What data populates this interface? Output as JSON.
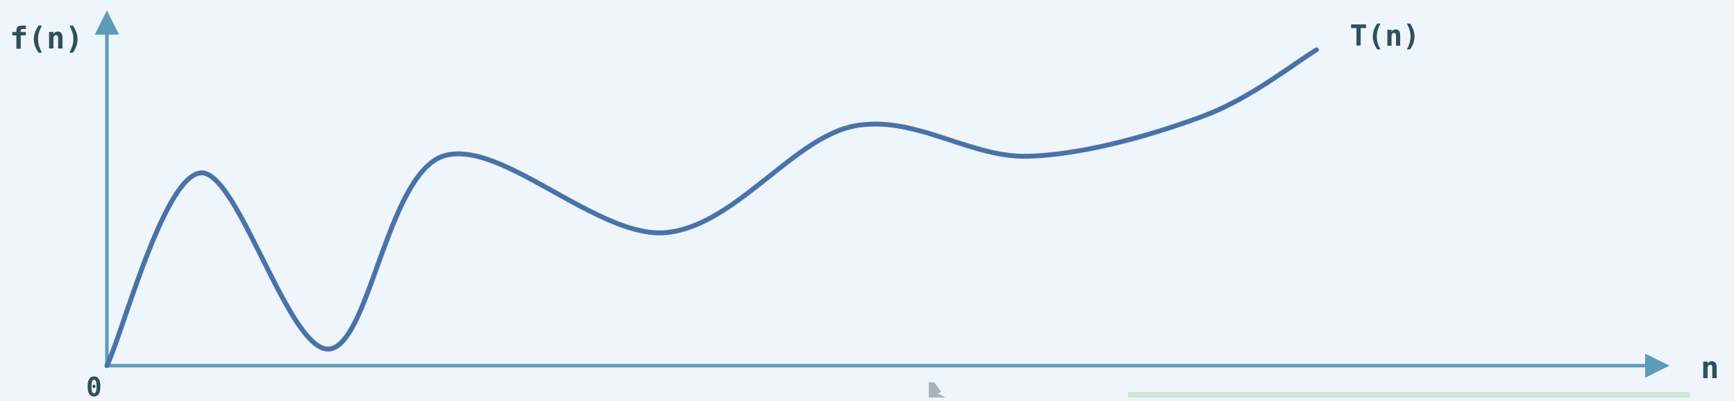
{
  "chart_data": {
    "type": "line",
    "xlabel": "n",
    "ylabel": "f(n)",
    "origin_label": "0",
    "xlim": [
      0,
      100
    ],
    "ylim": [
      0,
      100
    ],
    "grid": false,
    "colors": {
      "axis": "#5e9bb8",
      "curve": "#4a72a8",
      "label": "#2f4f5c",
      "background": "#eef5fb",
      "bottom_strip": "#cfe6d8"
    },
    "series": [
      {
        "name": "T(n)",
        "points": [
          [
            0,
            0
          ],
          [
            6.6,
            58
          ],
          [
            15.6,
            5
          ],
          [
            23.6,
            63
          ],
          [
            39.2,
            40
          ],
          [
            52.4,
            72
          ],
          [
            64.7,
            63
          ],
          [
            77.0,
            75
          ],
          [
            85.0,
            95
          ]
        ]
      }
    ]
  }
}
